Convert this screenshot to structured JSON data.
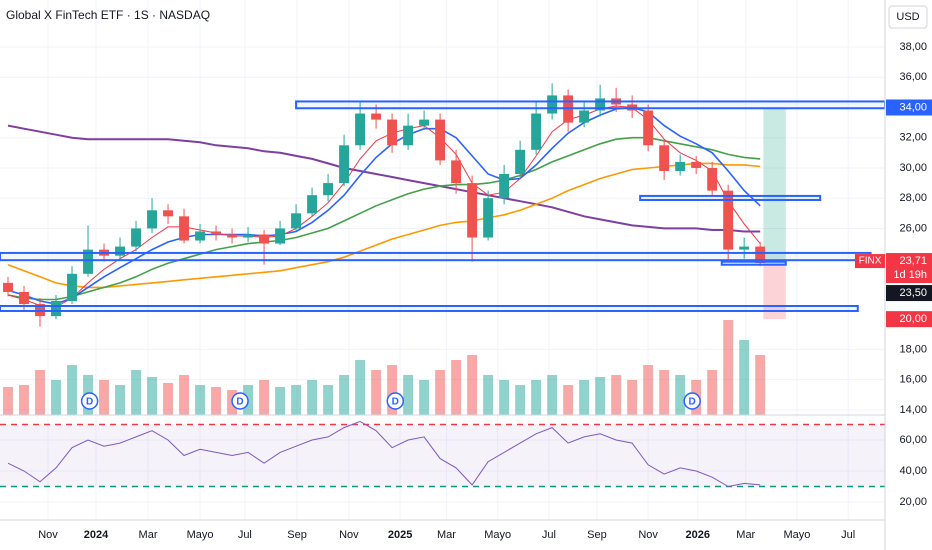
{
  "chart_data": {
    "type": "candlestick",
    "title": "Global X FinTech ETF · 1S · NASDAQ",
    "currency": "USD",
    "grid": true,
    "xlim": [
      -0.5,
      54.8
    ],
    "xticks": [
      {
        "value": 2.5,
        "label": "Nov"
      },
      {
        "value": 5.5,
        "label": "2024"
      },
      {
        "value": 8.75,
        "label": "Mar"
      },
      {
        "value": 12,
        "label": "Mayo"
      },
      {
        "value": 14.8,
        "label": "Jul"
      },
      {
        "value": 18.06,
        "label": "Sep"
      },
      {
        "value": 21.3,
        "label": "Nov"
      },
      {
        "value": 24.5,
        "label": "2025"
      },
      {
        "value": 27.4,
        "label": "Mar"
      },
      {
        "value": 30.6,
        "label": "Mayo"
      },
      {
        "value": 33.8,
        "label": "Jul"
      },
      {
        "value": 36.8,
        "label": "Sep"
      },
      {
        "value": 40,
        "label": "Nov"
      },
      {
        "value": 43.1,
        "label": "2026"
      },
      {
        "value": 46.1,
        "label": "Mar"
      },
      {
        "value": 49.3,
        "label": "Mayo"
      },
      {
        "value": 52.5,
        "label": "Jul"
      }
    ],
    "ylim": [
      13.66,
      41.11
    ],
    "yticks": [
      {
        "value": 38,
        "label": "38,00"
      },
      {
        "value": 36,
        "label": "36,00"
      },
      {
        "value": 32,
        "label": "32,00"
      },
      {
        "value": 30,
        "label": "30,00"
      },
      {
        "value": 28,
        "label": "28,00"
      },
      {
        "value": 26,
        "label": "26,00"
      },
      {
        "value": 18,
        "label": "18,00"
      },
      {
        "value": 16,
        "label": "16,00"
      },
      {
        "value": 14,
        "label": "14,00"
      }
    ],
    "up_color": "#26a69a",
    "down_color": "#ef5350",
    "open": [
      22.4,
      21.8,
      21.0,
      20.2,
      21.2,
      23.0,
      24.6,
      24.2,
      24.8,
      26.0,
      27.2,
      26.8,
      25.2,
      25.8,
      25.6,
      25.4,
      25.6,
      25.0,
      26.0,
      27.0,
      28.2,
      29.0,
      31.5,
      33.6,
      33.2,
      31.5,
      32.8,
      33.2,
      30.5,
      29.0,
      25.4,
      28.0,
      29.6,
      31.2,
      33.6,
      34.8,
      33.0,
      33.8,
      34.6,
      34.2,
      33.8,
      31.5,
      29.8,
      30.4,
      30.0,
      28.5,
      24.6,
      24.8
    ],
    "high": [
      22.8,
      22.2,
      21.4,
      21.6,
      23.5,
      26.2,
      25.0,
      25.4,
      26.5,
      28.0,
      27.6,
      27.3,
      26.3,
      26.2,
      26.0,
      26.1,
      25.9,
      26.5,
      27.6,
      28.7,
      29.6,
      32.2,
      34.4,
      34.2,
      33.6,
      33.6,
      33.8,
      33.6,
      31.2,
      29.5,
      28.5,
      30.2,
      31.8,
      34.4,
      35.6,
      35.2,
      34.4,
      35.5,
      35.3,
      34.8,
      34.2,
      31.9,
      30.9,
      30.8,
      30.4,
      28.9,
      25.4,
      25.1
    ],
    "low": [
      21.5,
      20.6,
      19.5,
      20.0,
      21.0,
      22.8,
      23.8,
      23.9,
      24.5,
      25.7,
      26.3,
      25.0,
      25.0,
      25.2,
      25.0,
      25.1,
      23.6,
      24.9,
      25.8,
      26.8,
      27.8,
      28.8,
      31.2,
      32.6,
      31.0,
      31.2,
      32.5,
      30.2,
      28.3,
      23.8,
      25.2,
      27.6,
      29.3,
      30.9,
      33.2,
      32.4,
      32.7,
      33.4,
      33.7,
      33.3,
      31.1,
      29.2,
      29.5,
      29.6,
      28.2,
      23.9,
      24.0,
      23.5
    ],
    "close": [
      21.8,
      21.0,
      20.2,
      21.2,
      23.0,
      24.6,
      24.2,
      24.8,
      26.0,
      27.2,
      26.8,
      25.2,
      25.8,
      25.6,
      25.4,
      25.6,
      25.0,
      26.0,
      27.0,
      28.2,
      29.0,
      31.5,
      33.6,
      33.2,
      31.5,
      32.8,
      33.2,
      30.5,
      29.0,
      25.4,
      28.0,
      29.6,
      31.2,
      33.6,
      34.8,
      33.0,
      33.8,
      34.6,
      34.2,
      33.8,
      31.5,
      29.8,
      30.4,
      30.0,
      28.5,
      24.6,
      24.8,
      23.71
    ],
    "volume": {
      "vlim": [
        0,
        100
      ],
      "up_color": "rgba(38,166,154,0.5)",
      "down_color": "rgba(239,83,80,0.5)",
      "values": [
        28,
        30,
        45,
        35,
        50,
        40,
        35,
        30,
        45,
        38,
        32,
        40,
        30,
        28,
        25,
        30,
        35,
        28,
        30,
        35,
        30,
        40,
        55,
        45,
        50,
        40,
        35,
        45,
        55,
        60,
        40,
        35,
        30,
        35,
        40,
        30,
        35,
        38,
        40,
        35,
        50,
        45,
        40,
        35,
        45,
        95,
        75,
        60
      ]
    },
    "ma": [
      {
        "color": "#7e3fa0",
        "values": [
          32.8,
          32.6,
          32.4,
          32.2,
          32.0,
          31.9,
          31.9,
          31.9,
          31.9,
          31.9,
          31.9,
          31.8,
          31.7,
          31.5,
          31.4,
          31.3,
          31.1,
          31.0,
          30.8,
          30.6,
          30.3,
          30.0,
          29.8,
          29.6,
          29.4,
          29.2,
          29.0,
          28.8,
          28.6,
          28.4,
          28.2,
          28.0,
          27.8,
          27.6,
          27.4,
          27.1,
          26.8,
          26.6,
          26.4,
          26.2,
          26.1,
          26.0,
          26.0,
          26.0,
          25.9,
          25.9,
          25.8,
          25.8
        ]
      },
      {
        "color": "#ff9800",
        "values": [
          23.6,
          23.2,
          22.8,
          22.4,
          22.2,
          22.1,
          22.1,
          22.2,
          22.3,
          22.4,
          22.5,
          22.6,
          22.7,
          22.8,
          22.9,
          23.0,
          23.1,
          23.2,
          23.4,
          23.6,
          23.8,
          24.1,
          24.5,
          24.9,
          25.3,
          25.6,
          25.9,
          26.2,
          26.4,
          26.5,
          26.7,
          26.9,
          27.2,
          27.6,
          28.0,
          28.5,
          28.9,
          29.3,
          29.6,
          29.9,
          30.0,
          30.1,
          30.2,
          30.3,
          30.3,
          30.2,
          30.2,
          30.1
        ]
      },
      {
        "color": "#43a047",
        "values": [
          21.6,
          21.4,
          21.3,
          21.3,
          21.5,
          21.8,
          22.1,
          22.4,
          22.8,
          23.3,
          23.7,
          24.0,
          24.3,
          24.6,
          24.8,
          25.0,
          25.1,
          25.2,
          25.4,
          25.7,
          26.0,
          26.5,
          27.0,
          27.5,
          27.9,
          28.3,
          28.6,
          28.8,
          28.9,
          28.9,
          29.0,
          29.2,
          29.5,
          29.9,
          30.4,
          30.8,
          31.2,
          31.6,
          31.9,
          32.0,
          32.0,
          31.8,
          31.6,
          31.4,
          31.2,
          30.9,
          30.7,
          30.6
        ]
      },
      {
        "color": "#2962ff",
        "values": [
          21.9,
          21.6,
          21.2,
          21.0,
          21.4,
          22.1,
          22.8,
          23.4,
          24.0,
          24.6,
          25.1,
          25.4,
          25.6,
          25.6,
          25.6,
          25.6,
          25.5,
          25.6,
          25.8,
          26.4,
          27.2,
          28.2,
          29.5,
          30.7,
          31.6,
          32.2,
          32.6,
          32.6,
          32.0,
          30.8,
          29.6,
          29.2,
          29.3,
          30.2,
          31.3,
          32.3,
          33.0,
          33.5,
          33.9,
          34.0,
          33.7,
          32.8,
          32.1,
          31.6,
          31.0,
          29.8,
          28.5,
          27.5
        ]
      },
      {
        "color": "#f23645",
        "values": [
          21.6,
          21.3,
          20.9,
          20.8,
          21.4,
          22.4,
          23.3,
          24.0,
          24.6,
          25.4,
          26.1,
          26.1,
          25.9,
          25.7,
          25.5,
          25.5,
          25.4,
          25.5,
          26.0,
          26.8,
          27.7,
          29.0,
          30.6,
          31.8,
          32.3,
          32.6,
          32.8,
          32.0,
          30.9,
          29.0,
          28.2,
          28.4,
          29.3,
          30.8,
          32.4,
          33.2,
          33.5,
          33.9,
          34.1,
          34.0,
          33.2,
          31.9,
          31.0,
          30.5,
          29.8,
          27.8,
          26.3,
          25.0
        ]
      }
    ],
    "zones": [
      {
        "from": 33.95,
        "to": 34.4,
        "x_from": 18.0,
        "x_to": 54.8
      },
      {
        "from": 27.88,
        "to": 28.15,
        "x_from": 39.5,
        "x_to": 50.75
      },
      {
        "from": 23.9,
        "to": 24.38,
        "x_from": -0.5,
        "x_to": 53.9
      },
      {
        "from": 23.6,
        "to": 23.8,
        "x_from": 44.6,
        "x_to": 48.6
      },
      {
        "from": 20.54,
        "to": 20.87,
        "x_from": -0.5,
        "x_to": 53.1
      }
    ],
    "position": {
      "target": 34.0,
      "entry": 23.71,
      "stop": 20.0,
      "x_from": 47.2,
      "x_to": 48.6
    },
    "tags": [
      {
        "value": 34.0,
        "label": "34,00",
        "color": "#2962ff"
      },
      {
        "value": 23.71,
        "label": "23,71",
        "sub": "1d 19h",
        "name": "FINX",
        "color": "#f23645"
      },
      {
        "value": 23.5,
        "label": "23,50",
        "color": "#131722"
      },
      {
        "value": 20.0,
        "label": "20,00",
        "color": "#f23645"
      }
    ],
    "dividends": {
      "label": "D",
      "x": [
        5.1,
        14.5,
        24.2,
        42.75
      ]
    },
    "rsi": {
      "color": "#7e57c2",
      "ylim": [
        8.4,
        76.1
      ],
      "yticks": [
        {
          "value": 60,
          "label": "60,00"
        },
        {
          "value": 40,
          "label": "40,00"
        },
        {
          "value": 20,
          "label": "20,00"
        }
      ],
      "upper": 70,
      "lower": 30,
      "values": [
        45,
        40,
        33,
        42,
        55,
        60,
        56,
        58,
        62,
        66,
        60,
        50,
        54,
        52,
        50,
        52,
        45,
        52,
        56,
        60,
        62,
        68,
        72,
        66,
        55,
        60,
        62,
        48,
        42,
        31,
        46,
        52,
        58,
        64,
        68,
        58,
        62,
        64,
        60,
        58,
        44,
        38,
        42,
        40,
        36,
        30,
        32,
        31
      ]
    }
  }
}
